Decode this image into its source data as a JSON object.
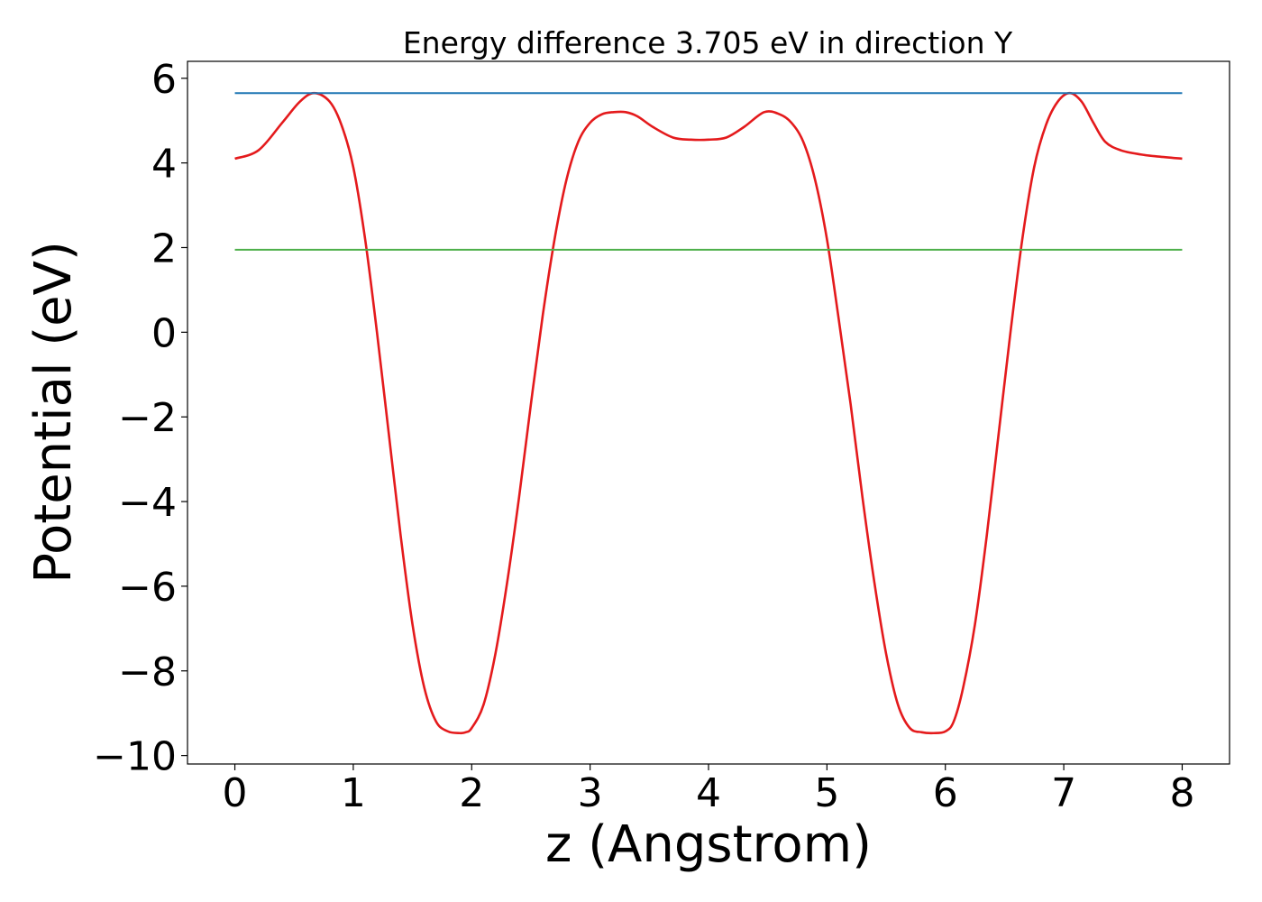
{
  "chart_data": {
    "type": "line",
    "title": "Energy difference 3.705 eV in direction Y",
    "xlabel": "z (Angstrom)",
    "ylabel": "Potential (eV)",
    "xlim": [
      -0.4,
      8.4
    ],
    "ylim": [
      -10.2,
      6.4
    ],
    "xticks": [
      0,
      1,
      2,
      3,
      4,
      5,
      6,
      7,
      8
    ],
    "xtick_labels": [
      "0",
      "1",
      "2",
      "3",
      "4",
      "5",
      "6",
      "7",
      "8"
    ],
    "yticks": [
      6,
      4,
      2,
      0,
      -2,
      -4,
      -6,
      -8,
      -10
    ],
    "ytick_labels": [
      "6",
      "4",
      "2",
      "0",
      "−2",
      "−4",
      "−6",
      "−8",
      "−10"
    ],
    "grid": false,
    "series": [
      {
        "color": "#e41a1c",
        "x": [
          0,
          0.2,
          0.4,
          0.55,
          0.67,
          0.8,
          0.9,
          1.0,
          1.1,
          1.2,
          1.3,
          1.4,
          1.5,
          1.6,
          1.7,
          1.8,
          1.9,
          1.95,
          2.0,
          2.1,
          2.2,
          2.3,
          2.4,
          2.5,
          2.6,
          2.7,
          2.8,
          2.9,
          3.0,
          3.1,
          3.2,
          3.3,
          3.4,
          3.53,
          3.7,
          3.85,
          4.0,
          4.15,
          4.3,
          4.47,
          4.6,
          4.7,
          4.8,
          4.9,
          5.0,
          5.1,
          5.2,
          5.3,
          5.4,
          5.5,
          5.6,
          5.7,
          5.8,
          5.9,
          6.0,
          6.07,
          6.15,
          6.25,
          6.35,
          6.45,
          6.55,
          6.65,
          6.75,
          6.85,
          6.95,
          7.05,
          7.15,
          7.25,
          7.35,
          7.48,
          7.65,
          7.8,
          8.0
        ],
        "y": [
          4.1,
          4.3,
          4.95,
          5.45,
          5.65,
          5.45,
          4.9,
          3.9,
          2.2,
          0.0,
          -2.4,
          -4.8,
          -6.9,
          -8.4,
          -9.2,
          -9.43,
          -9.47,
          -9.45,
          -9.35,
          -8.8,
          -7.6,
          -5.9,
          -3.9,
          -1.7,
          0.4,
          2.2,
          3.6,
          4.5,
          4.95,
          5.15,
          5.2,
          5.2,
          5.1,
          4.85,
          4.6,
          4.55,
          4.55,
          4.6,
          4.85,
          5.2,
          5.15,
          4.95,
          4.5,
          3.6,
          2.2,
          0.3,
          -1.7,
          -3.9,
          -5.9,
          -7.6,
          -8.8,
          -9.35,
          -9.45,
          -9.47,
          -9.43,
          -9.2,
          -8.4,
          -6.9,
          -4.8,
          -2.4,
          0.0,
          2.2,
          3.9,
          4.9,
          5.45,
          5.65,
          5.45,
          4.95,
          4.5,
          4.3,
          4.2,
          4.15,
          4.1
        ]
      },
      {
        "color": "#1f77b4",
        "x": [
          0,
          8
        ],
        "y": [
          5.65,
          5.65
        ]
      },
      {
        "color": "#4daf4a",
        "x": [
          0,
          8
        ],
        "y": [
          1.95,
          1.95
        ]
      }
    ]
  }
}
